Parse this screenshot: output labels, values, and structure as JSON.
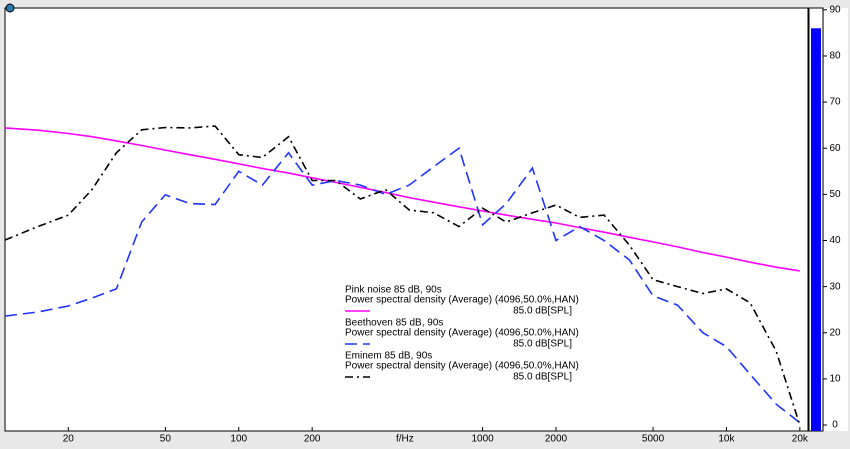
{
  "chart_data": {
    "type": "line",
    "xscale": "log",
    "xlabel": "f/Hz",
    "x": [
      11,
      15,
      20,
      25,
      31.5,
      40,
      50,
      63,
      80,
      100,
      125,
      160,
      200,
      250,
      315,
      400,
      500,
      630,
      800,
      1000,
      1250,
      1600,
      2000,
      2500,
      3150,
      4000,
      5000,
      6300,
      8000,
      10000,
      12500,
      16000,
      20000
    ],
    "xlim": [
      11,
      21600
    ],
    "ylim": [
      -1.3,
      90.4
    ],
    "xticks": [
      20,
      50,
      100,
      200,
      1000,
      2000,
      5000,
      {
        "value": 10000,
        "label": "10k"
      },
      {
        "value": 20000,
        "label": "20k"
      }
    ],
    "yticks": [
      0,
      10,
      20,
      30,
      40,
      50,
      60,
      70,
      80,
      90
    ],
    "meter": {
      "value": 86,
      "color": "#0000ff"
    },
    "series": [
      {
        "name": "Pink noise 85 dB, 90s",
        "description": "Power spectral density (Average) (4096,50.0%,HAN)",
        "level": "85.0 dB[SPL]",
        "color": "#ff00ff",
        "dash": "solid",
        "values": [
          64.4,
          63.9,
          63.2,
          62.5,
          61.6,
          60.6,
          59.6,
          58.6,
          57.6,
          56.6,
          55.6,
          54.6,
          53.6,
          52.6,
          51.5,
          50.4,
          49.3,
          48.3,
          47.3,
          46.4,
          45.5,
          44.6,
          43.8,
          42.8,
          41.8,
          40.7,
          39.7,
          38.6,
          37.4,
          36.4,
          35.3,
          34.2,
          33.4
        ]
      },
      {
        "name": "Beethoven 85 dB, 90s",
        "description": "Power spectral density (Average) (4096,50.0%,HAN)",
        "level": "85.0 dB[SPL]",
        "color": "#1f35ff",
        "dash": "dash",
        "values": [
          23.6,
          24.5,
          25.8,
          27.5,
          29.5,
          44,
          49.9,
          48,
          47.8,
          55,
          52,
          59,
          52,
          53,
          52,
          50,
          52,
          56,
          60,
          43.4,
          48,
          55.7,
          40,
          43,
          40,
          35.8,
          28,
          26,
          20,
          17,
          11,
          4.5,
          0.5
        ]
      },
      {
        "name": "Eminem 85 dB, 90s",
        "description": "Power spectral density (Average) (4096,50.0%,HAN)",
        "level": "85.0 dB[SPL]",
        "color": "#000000",
        "dash": "dashdot",
        "values": [
          40.1,
          43,
          45.5,
          51,
          59,
          64,
          64.5,
          64.4,
          64.8,
          58.6,
          58,
          62.5,
          53,
          53,
          49,
          51,
          46.6,
          46,
          43,
          47,
          44,
          46,
          47.7,
          45,
          45.5,
          39,
          31.5,
          30,
          28.5,
          29.5,
          26.5,
          16,
          0
        ]
      }
    ]
  }
}
